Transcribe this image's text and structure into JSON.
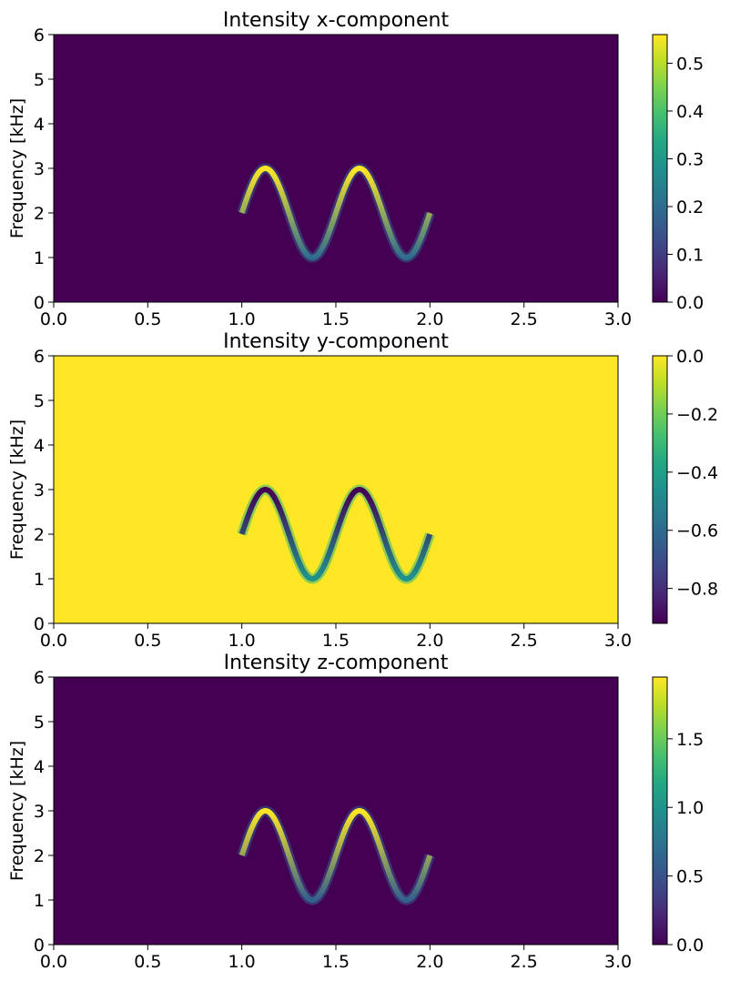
{
  "chart_data": [
    {
      "type": "heatmap",
      "title": "Intensity x-component",
      "xlabel": "",
      "ylabel": "Frequency [kHz]",
      "xlim": [
        0.0,
        3.0
      ],
      "ylim": [
        0,
        6
      ],
      "xticks": [
        "0.0",
        "0.5",
        "1.0",
        "1.5",
        "2.0",
        "2.5",
        "3.0"
      ],
      "yticks": [
        "0",
        "1",
        "2",
        "3",
        "4",
        "5",
        "6"
      ],
      "colormap": "viridis",
      "colorbar": {
        "min": 0.0,
        "max": 0.56,
        "ticks": [
          "0.0",
          "0.1",
          "0.2",
          "0.3",
          "0.4",
          "0.5"
        ],
        "tick_values": [
          0.0,
          0.1,
          0.2,
          0.3,
          0.4,
          0.5
        ]
      },
      "background_value": 0.0,
      "signal": {
        "t_start": 1.0,
        "t_end": 2.0,
        "center_freq": 2.0,
        "amplitude": 1.0,
        "period": 0.5,
        "crest_value": 0.56,
        "trough_value": 0.2
      }
    },
    {
      "type": "heatmap",
      "title": "Intensity y-component",
      "xlabel": "",
      "ylabel": "Frequency [kHz]",
      "xlim": [
        0.0,
        3.0
      ],
      "ylim": [
        0,
        6
      ],
      "xticks": [
        "0.0",
        "0.5",
        "1.0",
        "1.5",
        "2.0",
        "2.5",
        "3.0"
      ],
      "yticks": [
        "0",
        "1",
        "2",
        "3",
        "4",
        "5",
        "6"
      ],
      "colormap": "viridis",
      "colorbar": {
        "min": -0.92,
        "max": 0.0,
        "ticks": [
          "0.0",
          "−0.2",
          "−0.4",
          "−0.6",
          "−0.8"
        ],
        "tick_values": [
          0.0,
          -0.2,
          -0.4,
          -0.6,
          -0.8
        ]
      },
      "background_value": 0.0,
      "signal": {
        "t_start": 1.0,
        "t_end": 2.0,
        "center_freq": 2.0,
        "amplitude": 1.0,
        "period": 0.5,
        "crest_value": -0.92,
        "trough_value": -0.45
      }
    },
    {
      "type": "heatmap",
      "title": "Intensity z-component",
      "xlabel": "",
      "ylabel": "Frequency [kHz]",
      "xlim": [
        0.0,
        3.0
      ],
      "ylim": [
        0,
        6
      ],
      "xticks": [
        "0.0",
        "0.5",
        "1.0",
        "1.5",
        "2.0",
        "2.5",
        "3.0"
      ],
      "yticks": [
        "0",
        "1",
        "2",
        "3",
        "4",
        "5",
        "6"
      ],
      "colormap": "viridis",
      "colorbar": {
        "min": 0.0,
        "max": 1.95,
        "ticks": [
          "0.0",
          "0.5",
          "1.0",
          "1.5"
        ],
        "tick_values": [
          0.0,
          0.5,
          1.0,
          1.5
        ]
      },
      "background_value": 0.0,
      "signal": {
        "t_start": 1.0,
        "t_end": 2.0,
        "center_freq": 2.0,
        "amplitude": 1.0,
        "period": 0.5,
        "crest_value": 1.95,
        "trough_value": 0.6
      }
    }
  ]
}
